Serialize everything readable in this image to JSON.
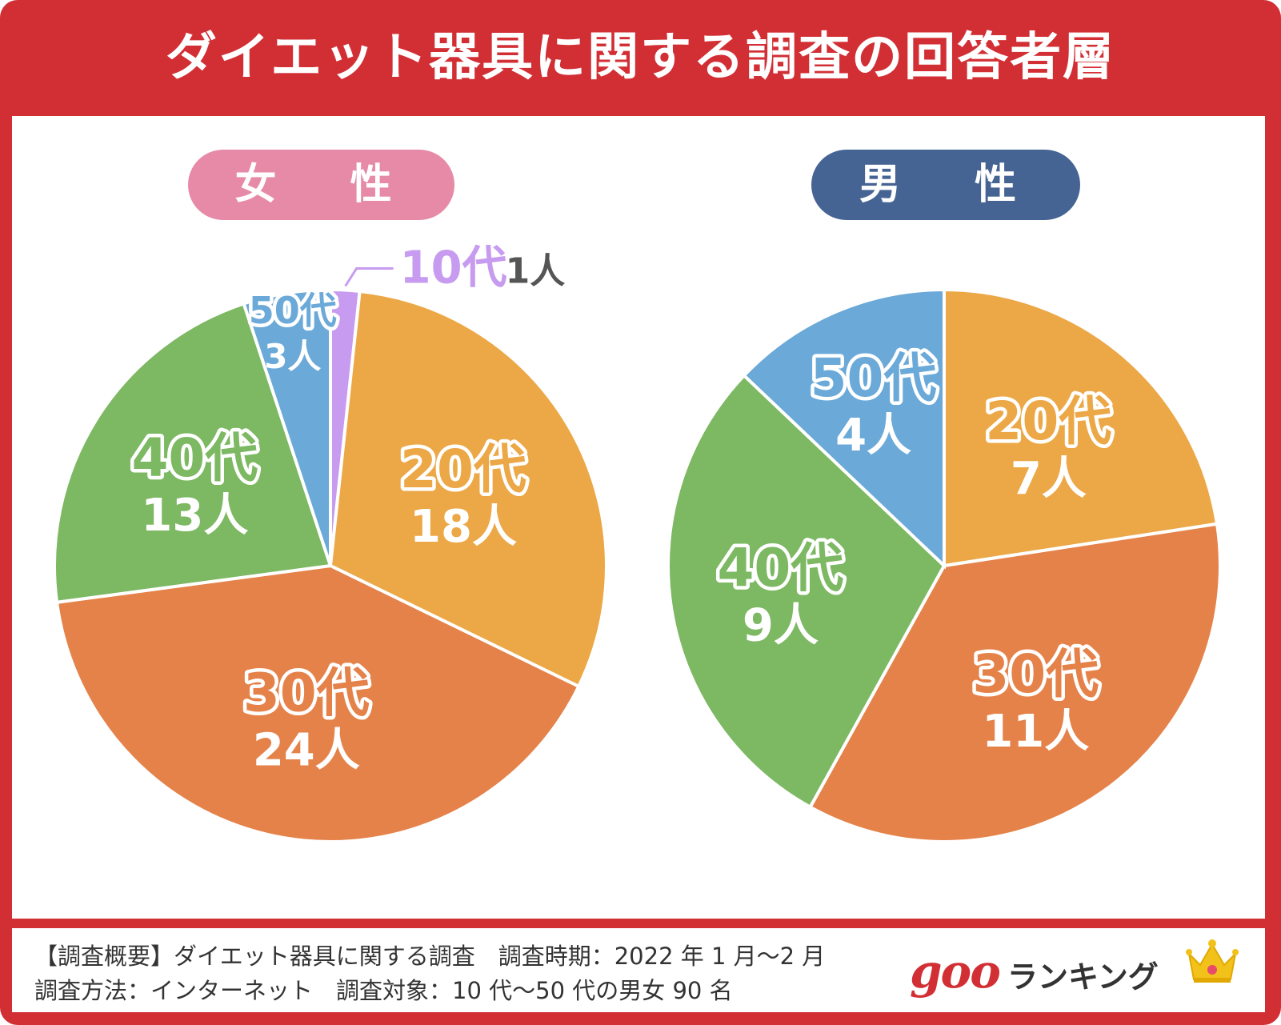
{
  "title": "ダイエット器具に関する調査の回答者層",
  "groups": {
    "female": "女　性",
    "male": "男　性"
  },
  "chart_data": [
    {
      "type": "pie",
      "title": "女　性",
      "categories": [
        "10代",
        "20代",
        "30代",
        "40代",
        "50代"
      ],
      "values": [
        1,
        18,
        24,
        13,
        3
      ],
      "labels": [
        "1人",
        "18人",
        "24人",
        "13人",
        "3人"
      ],
      "colors": [
        "#c79cf0",
        "#eca847",
        "#e5824a",
        "#7db863",
        "#6aa9d8"
      ]
    },
    {
      "type": "pie",
      "title": "男　性",
      "categories": [
        "20代",
        "30代",
        "40代",
        "50代"
      ],
      "values": [
        7,
        11,
        9,
        4
      ],
      "labels": [
        "7人",
        "11人",
        "9人",
        "4人"
      ],
      "colors": [
        "#eca847",
        "#e5824a",
        "#7db863",
        "#6aa9d8"
      ]
    }
  ],
  "colors": {
    "frame": "#d22f35",
    "female_pill": "#e68aa8",
    "male_pill": "#466493",
    "text_dark": "#555555"
  },
  "footer": {
    "line1": "【調査概要】ダイエット器具に関する調査　調査時期：2022 年 1 月〜2 月",
    "line2": "調査方法：インターネット　調査対象：10 代〜50 代の男女 90 名",
    "brand_goo": "goo",
    "brand_rank": "ランキング"
  }
}
